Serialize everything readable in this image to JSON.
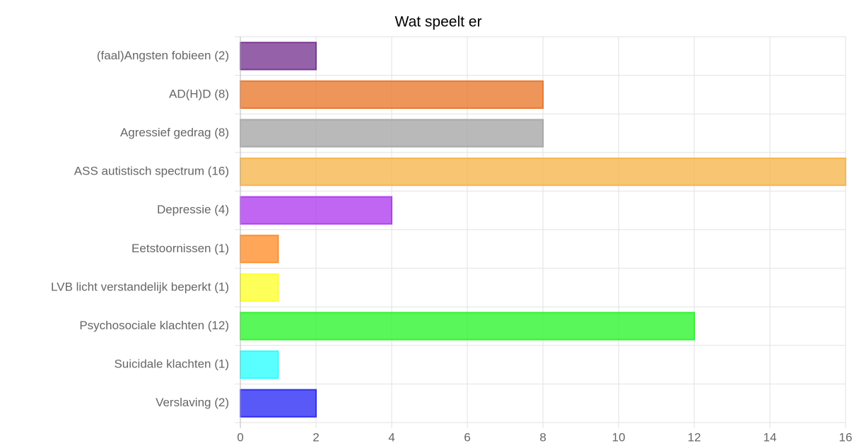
{
  "chart_data": {
    "type": "hbar",
    "title": "Wat speelt er",
    "categories": [
      "(faal)Angsten fobieen (2)",
      "AD(H)D (8)",
      "Agressief gedrag (8)",
      "ASS autistisch spectrum (16)",
      "Depressie (4)",
      "Eetstoornissen (1)",
      "LVB licht verstandelijk beperkt (1)",
      "Psychosociale klachten (12)",
      "Suicidale klachten (1)",
      "Verslaving (2)"
    ],
    "values": [
      2,
      8,
      8,
      16,
      4,
      1,
      1,
      12,
      1,
      2
    ],
    "colors": [
      "#7a3b93",
      "#ea7a30",
      "#a8a8a8",
      "#f6b650",
      "#b040f0",
      "#ff9030",
      "#ffff30",
      "#30f530",
      "#30ffff",
      "#3030f5"
    ],
    "xlim": [
      0,
      16
    ],
    "xticks": [
      0,
      2,
      4,
      6,
      8,
      10,
      12,
      14,
      16
    ],
    "grid": true
  }
}
